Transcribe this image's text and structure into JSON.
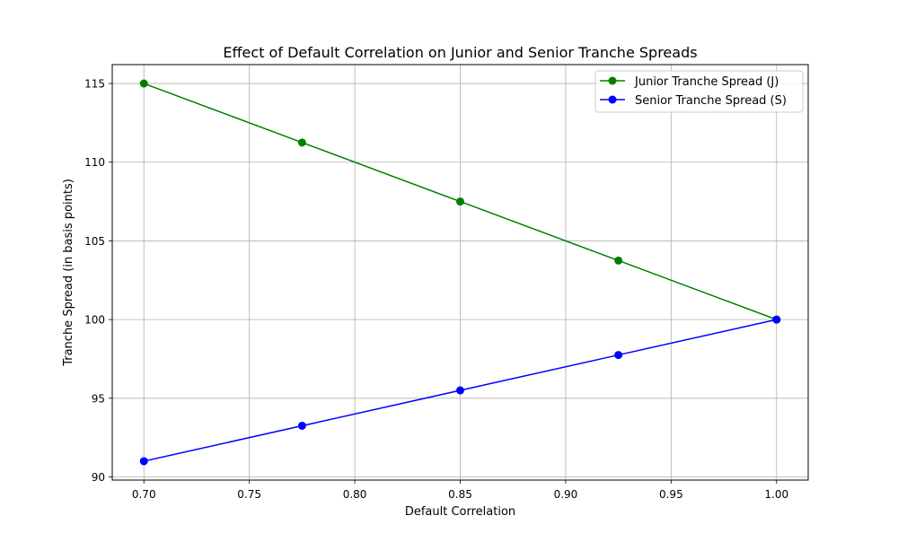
{
  "chart_data": {
    "type": "line",
    "title": "Effect of Default Correlation on Junior and Senior Tranche Spreads",
    "xlabel": "Default Correlation",
    "ylabel": "Tranche Spread (in basis points)",
    "xlim": [
      0.685,
      1.015
    ],
    "ylim": [
      89.8,
      116.2
    ],
    "x_ticks": [
      0.7,
      0.75,
      0.8,
      0.85,
      0.9,
      0.95,
      1.0
    ],
    "x_tick_labels": [
      "0.70",
      "0.75",
      "0.80",
      "0.85",
      "0.90",
      "0.95",
      "1.00"
    ],
    "y_ticks": [
      90,
      95,
      100,
      105,
      110,
      115
    ],
    "y_tick_labels": [
      "90",
      "95",
      "100",
      "105",
      "110",
      "115"
    ],
    "grid": true,
    "legend_position": "top-right",
    "series": [
      {
        "name": "Junior Tranche Spread (J)",
        "color": "#008000",
        "marker": "circle",
        "x": [
          0.7,
          0.775,
          0.85,
          0.925,
          1.0
        ],
        "y": [
          115.0,
          111.25,
          107.5,
          103.75,
          100.0
        ]
      },
      {
        "name": "Senior Tranche Spread (S)",
        "color": "#0000ff",
        "marker": "circle",
        "x": [
          0.7,
          0.775,
          0.85,
          0.925,
          1.0
        ],
        "y": [
          91.0,
          93.25,
          95.5,
          97.75,
          100.0
        ]
      }
    ]
  }
}
